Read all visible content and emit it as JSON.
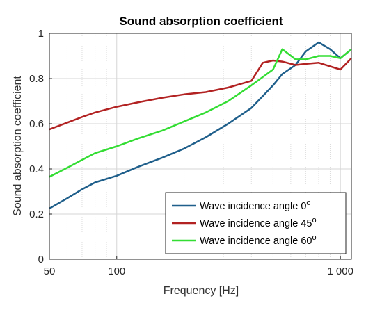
{
  "chart_data": {
    "type": "line",
    "title": "Sound absorption coefficient",
    "xlabel": "Frequency [Hz]",
    "ylabel": "Sound absorption coefficient",
    "x_scale": "log",
    "xlim": [
      50,
      1120
    ],
    "ylim": [
      0,
      1
    ],
    "x_ticks": [
      50,
      100,
      1000
    ],
    "x_tick_labels": [
      "50",
      "100",
      "1 000"
    ],
    "y_ticks": [
      0,
      0.2,
      0.4,
      0.6,
      0.8,
      1
    ],
    "y_tick_labels": [
      "0",
      "0.2",
      "0.4",
      "0.6",
      "0.8",
      "1"
    ],
    "grid": true,
    "legend_position": "bottom-right",
    "legend_suffix": "o",
    "series": [
      {
        "name": "Wave incidence angle 0",
        "color": "#1f5f8b",
        "points": [
          [
            50,
            0.225
          ],
          [
            60,
            0.27
          ],
          [
            70,
            0.31
          ],
          [
            80,
            0.34
          ],
          [
            100,
            0.37
          ],
          [
            125,
            0.41
          ],
          [
            160,
            0.45
          ],
          [
            200,
            0.49
          ],
          [
            250,
            0.54
          ],
          [
            315,
            0.6
          ],
          [
            400,
            0.67
          ],
          [
            500,
            0.77
          ],
          [
            550,
            0.82
          ],
          [
            630,
            0.86
          ],
          [
            700,
            0.92
          ],
          [
            800,
            0.96
          ],
          [
            900,
            0.93
          ],
          [
            1000,
            0.89
          ],
          [
            1120,
            0.93
          ]
        ]
      },
      {
        "name": "Wave incidence angle 45",
        "color": "#b22222",
        "points": [
          [
            50,
            0.575
          ],
          [
            60,
            0.605
          ],
          [
            70,
            0.63
          ],
          [
            80,
            0.65
          ],
          [
            100,
            0.675
          ],
          [
            125,
            0.695
          ],
          [
            160,
            0.715
          ],
          [
            200,
            0.73
          ],
          [
            250,
            0.74
          ],
          [
            315,
            0.76
          ],
          [
            400,
            0.79
          ],
          [
            450,
            0.87
          ],
          [
            500,
            0.88
          ],
          [
            550,
            0.875
          ],
          [
            630,
            0.86
          ],
          [
            700,
            0.865
          ],
          [
            800,
            0.87
          ],
          [
            1000,
            0.84
          ],
          [
            1120,
            0.89
          ]
        ]
      },
      {
        "name": "Wave incidence angle 60",
        "color": "#33dd33",
        "points": [
          [
            50,
            0.365
          ],
          [
            60,
            0.405
          ],
          [
            70,
            0.44
          ],
          [
            80,
            0.47
          ],
          [
            100,
            0.5
          ],
          [
            125,
            0.535
          ],
          [
            160,
            0.57
          ],
          [
            200,
            0.61
          ],
          [
            250,
            0.65
          ],
          [
            315,
            0.7
          ],
          [
            400,
            0.77
          ],
          [
            500,
            0.84
          ],
          [
            550,
            0.93
          ],
          [
            630,
            0.885
          ],
          [
            700,
            0.885
          ],
          [
            800,
            0.9
          ],
          [
            900,
            0.9
          ],
          [
            1000,
            0.89
          ],
          [
            1120,
            0.93
          ]
        ]
      }
    ]
  }
}
